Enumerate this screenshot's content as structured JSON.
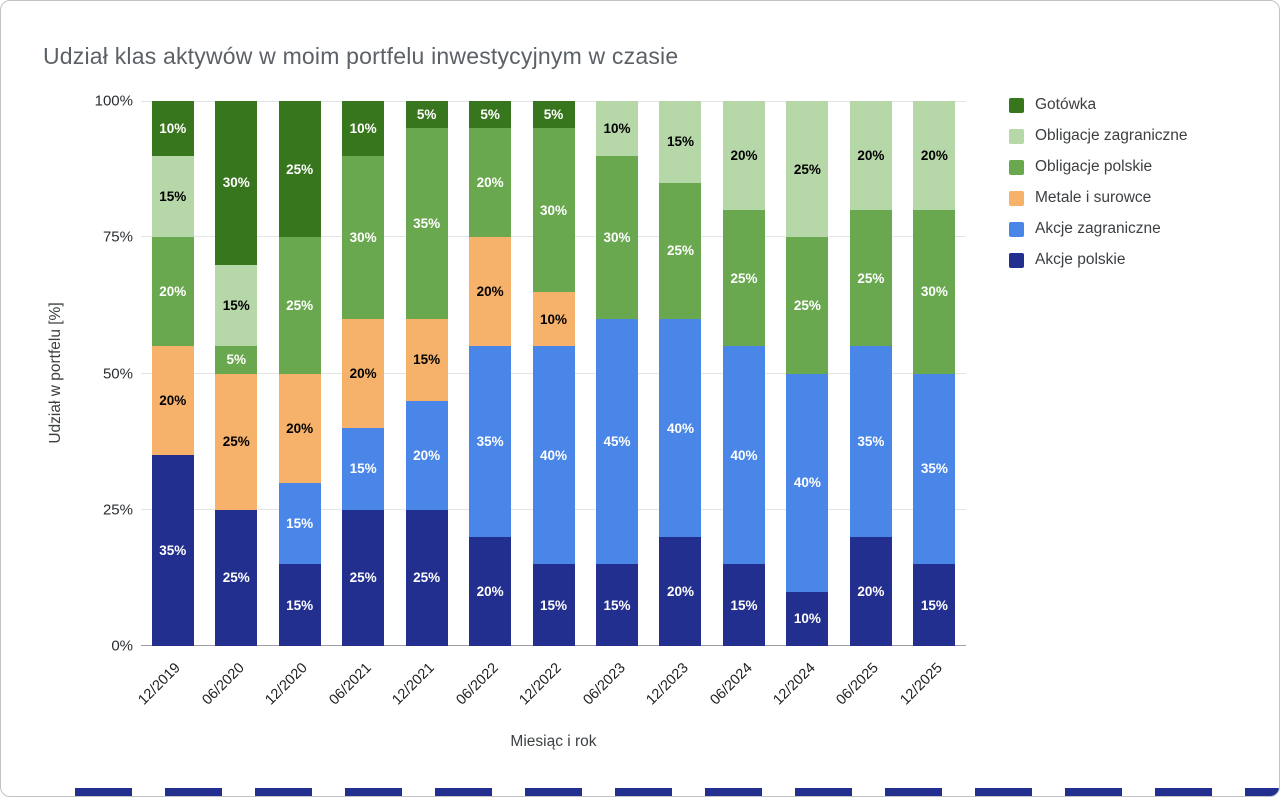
{
  "chart_data": {
    "type": "bar",
    "variant": "stacked-100-percent",
    "title": "Udział klas aktywów w moim portfelu inwestycyjnym w czasie",
    "xlabel": "Miesiąc i rok",
    "ylabel": "Udział w portfelu [%]",
    "ylim": [
      0,
      100
    ],
    "y_ticks": [
      "0%",
      "25%",
      "50%",
      "75%",
      "100%"
    ],
    "grid": true,
    "legend_position": "right",
    "categories": [
      "12/2019",
      "06/2020",
      "12/2020",
      "06/2021",
      "12/2021",
      "06/2022",
      "12/2022",
      "06/2023",
      "12/2023",
      "06/2024",
      "12/2024",
      "06/2025",
      "12/2025"
    ],
    "series": [
      {
        "name": "Akcje polskie",
        "color": "#222f8e",
        "label_color": "#ffffff",
        "values": [
          35,
          25,
          15,
          25,
          25,
          20,
          15,
          15,
          20,
          15,
          10,
          20,
          15
        ]
      },
      {
        "name": "Akcje zagraniczne",
        "color": "#4a86e8",
        "label_color": "#ffffff",
        "values": [
          0,
          0,
          15,
          15,
          20,
          35,
          40,
          45,
          40,
          40,
          40,
          35,
          35
        ]
      },
      {
        "name": "Metale i surowce",
        "color": "#f6b26b",
        "label_color": "#000000",
        "values": [
          20,
          25,
          20,
          20,
          15,
          20,
          10,
          0,
          0,
          0,
          0,
          0,
          0
        ]
      },
      {
        "name": "Obligacje polskie",
        "color": "#6aa84f",
        "label_color": "#ffffff",
        "values": [
          20,
          5,
          25,
          30,
          35,
          20,
          30,
          30,
          25,
          25,
          25,
          25,
          30
        ]
      },
      {
        "name": "Obligacje zagraniczne",
        "color": "#b6d7a8",
        "label_color": "#000000",
        "values": [
          15,
          15,
          0,
          0,
          0,
          0,
          0,
          10,
          15,
          20,
          25,
          20,
          20
        ]
      },
      {
        "name": "Gotówka",
        "color": "#38761d",
        "label_color": "#ffffff",
        "values": [
          10,
          30,
          25,
          10,
          5,
          5,
          5,
          0,
          0,
          0,
          0,
          0,
          0
        ]
      }
    ],
    "legend": {
      "items": [
        {
          "label": "Gotówka",
          "color": "#38761d"
        },
        {
          "label": "Obligacje zagraniczne",
          "color": "#b6d7a8"
        },
        {
          "label": "Obligacje polskie",
          "color": "#6aa84f"
        },
        {
          "label": "Metale i surowce",
          "color": "#f6b26b"
        },
        {
          "label": "Akcje zagraniczne",
          "color": "#4a86e8"
        },
        {
          "label": "Akcje polskie",
          "color": "#222f8e"
        }
      ]
    }
  },
  "decor": {
    "bottom_strip": {
      "color": "#222f8e",
      "segment_count": 14
    }
  }
}
